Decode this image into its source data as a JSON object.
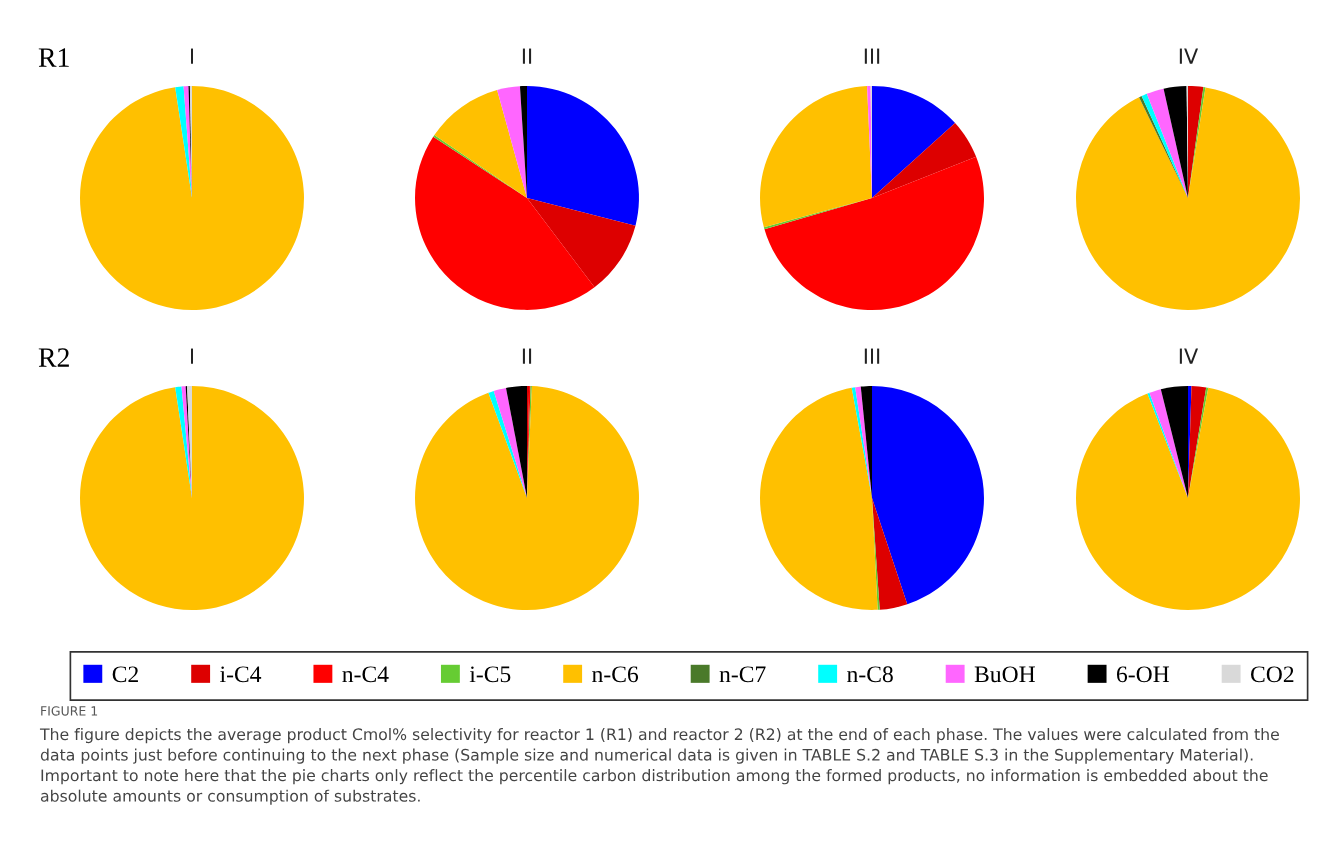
{
  "chart_data": [
    {
      "type": "pie",
      "subtitle": "R1",
      "title": "I",
      "legend": "bottom",
      "categories": [
        "C2",
        "i-C4",
        "n-C4",
        "i-C5",
        "n-C6",
        "n-C7",
        "n-C8",
        "BuOH",
        "6-OH",
        "CO2"
      ],
      "values": [
        0,
        0,
        0,
        0,
        97.6,
        0,
        1.2,
        0.7,
        0.2,
        0.3
      ],
      "colors": [
        "#0000ff",
        "#dd0000",
        "#ff0000",
        "#66cc33",
        "#ffc000",
        "#4a7a2a",
        "#00ffff",
        "#ff66ff",
        "#000000",
        "#d9d9d9"
      ]
    },
    {
      "type": "pie",
      "title": "II",
      "categories": [
        null,
        null,
        null,
        null,
        null,
        null,
        null,
        null,
        null,
        null
      ],
      "values": [
        29.0,
        10.7,
        44.5,
        0.3,
        11.2,
        0,
        0,
        3.3,
        1.0,
        0
      ],
      "colors": [
        "#0000ff",
        "#dd0000",
        "#ff0000",
        "#66cc33",
        "#ffc000",
        "#4a7a2a",
        "#00ffff",
        "#ff66ff",
        "#000000",
        "#d9d9d9"
      ]
    },
    {
      "type": "pie",
      "title": "III",
      "categories": [
        null,
        null,
        null,
        null,
        null,
        null,
        null,
        null,
        null,
        null
      ],
      "values": [
        13.3,
        5.7,
        51.5,
        0.3,
        28.5,
        0,
        0,
        0.5,
        0,
        0.2
      ],
      "colors": [
        "#0000ff",
        "#dd0000",
        "#ff0000",
        "#66cc33",
        "#ffc000",
        "#4a7a2a",
        "#00ffff",
        "#ff66ff",
        "#000000",
        "#d9d9d9"
      ]
    },
    {
      "type": "pie",
      "title": "IV",
      "categories": [
        null,
        null,
        null,
        null,
        null,
        null,
        null,
        null,
        null,
        null
      ],
      "values": [
        0,
        2.2,
        0,
        0.3,
        90.3,
        0.4,
        0.8,
        2.5,
        3.3,
        0.2
      ],
      "colors": [
        "#0000ff",
        "#dd0000",
        "#ff0000",
        "#66cc33",
        "#ffc000",
        "#4a7a2a",
        "#00ffff",
        "#ff66ff",
        "#000000",
        "#d9d9d9"
      ]
    },
    {
      "type": "pie",
      "subtitle": "R2",
      "title": "I",
      "categories": [
        null,
        null,
        null,
        null,
        null,
        null,
        null,
        null,
        null,
        null
      ],
      "values": [
        0,
        0,
        0,
        0,
        97.6,
        0,
        0.9,
        0.6,
        0.2,
        0.7
      ],
      "colors": [
        "#0000ff",
        "#dd0000",
        "#ff0000",
        "#66cc33",
        "#ffc000",
        "#4a7a2a",
        "#00ffff",
        "#ff66ff",
        "#000000",
        "#d9d9d9"
      ]
    },
    {
      "type": "pie",
      "title": "II",
      "categories": [
        null,
        null,
        null,
        null,
        null,
        null,
        null,
        null,
        null,
        null
      ],
      "values": [
        0,
        0.3,
        0.2,
        0.2,
        93.7,
        0,
        0.8,
        1.8,
        3.0,
        0
      ],
      "colors": [
        "#0000ff",
        "#dd0000",
        "#ff0000",
        "#66cc33",
        "#ffc000",
        "#4a7a2a",
        "#00ffff",
        "#ff66ff",
        "#000000",
        "#d9d9d9"
      ]
    },
    {
      "type": "pie",
      "title": "III",
      "categories": [
        null,
        null,
        null,
        null,
        null,
        null,
        null,
        null,
        null,
        null
      ],
      "values": [
        44.9,
        4.0,
        0,
        0.3,
        47.9,
        0,
        0.5,
        0.8,
        1.6,
        0
      ],
      "colors": [
        "#0000ff",
        "#dd0000",
        "#ff0000",
        "#66cc33",
        "#ffc000",
        "#4a7a2a",
        "#00ffff",
        "#ff66ff",
        "#000000",
        "#d9d9d9"
      ]
    },
    {
      "type": "pie",
      "title": "IV",
      "categories": [
        null,
        null,
        null,
        null,
        null,
        null,
        null,
        null,
        null,
        null
      ],
      "values": [
        0.5,
        2.1,
        0,
        0.3,
        91.2,
        0,
        0.3,
        1.7,
        3.9,
        0
      ],
      "colors": [
        "#0000ff",
        "#dd0000",
        "#ff0000",
        "#66cc33",
        "#ffc000",
        "#4a7a2a",
        "#00ffff",
        "#ff66ff",
        "#000000",
        "#d9d9d9"
      ],
      "annotations": [
        "FIGURE 1",
        "The figure depicts the average product Cmol% selectivity for reactor 1 (R1) and reactor 2 (R2) at the end of each phase. The values were calculated from the data points just before continuing to the next phase (Sample size and numerical data is given in TABLE S.2 and TABLE S.3 in the Supplementary Material). Important to note here that the pie charts only reflect the percentile carbon distribution among the formed products, no information is embedded about the absolute amounts or consumption of substrates."
      ]
    }
  ]
}
